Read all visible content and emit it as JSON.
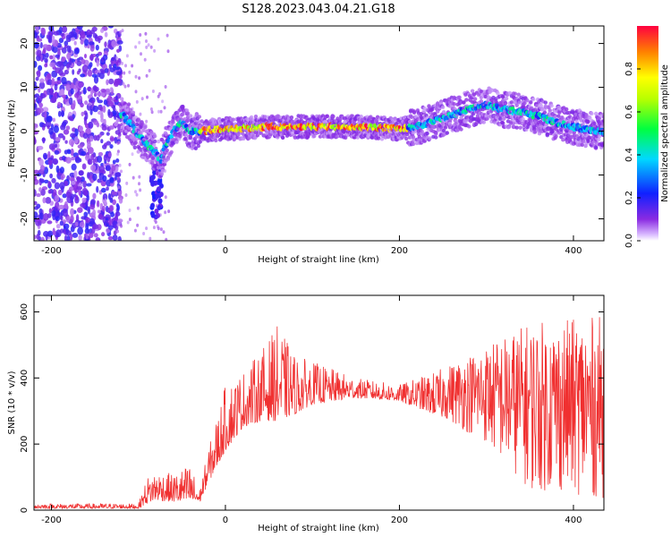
{
  "title": "S128.2023.043.04.21.G18",
  "chart_data": [
    {
      "type": "heatmap",
      "xlabel": "Height of straight line (km)",
      "ylabel": "Frequency (Hz)",
      "xlim": [
        -220,
        435
      ],
      "ylim": [
        -25,
        24
      ],
      "xticks": [
        -200,
        0,
        200,
        400
      ],
      "yticks": [
        -20,
        -10,
        0,
        10,
        20
      ],
      "colorbar": {
        "label": "Normalized spectral amplitude",
        "range": [
          0,
          1
        ],
        "ticks": [
          "0.0",
          "0.2",
          "0.4",
          "0.6",
          "0.8"
        ],
        "colormap": "rainbow (white-violet-blue-cyan-green-yellow-red)"
      },
      "ridge_x": [
        -120,
        -110,
        -100,
        -90,
        -80,
        -75,
        -70,
        -60,
        -50,
        -40,
        -30,
        0,
        50,
        100,
        150,
        200,
        220,
        250,
        280,
        300,
        320,
        350,
        380,
        400,
        430
      ],
      "ridge_y": [
        4,
        2,
        -1,
        -3,
        -5,
        -7,
        -4,
        0,
        2,
        0,
        0,
        0.5,
        1,
        1,
        1,
        0.5,
        1,
        3,
        5,
        6,
        5,
        4,
        2,
        1,
        0
      ]
    },
    {
      "type": "line",
      "xlabel": "Height of straight line (km)",
      "ylabel": "SNR (10 * v/v)",
      "xlim": [
        -220,
        435
      ],
      "ylim": [
        0,
        650
      ],
      "xticks": [
        -200,
        0,
        200,
        400
      ],
      "yticks": [
        0,
        200,
        400,
        600
      ],
      "color": "#f03030",
      "envelope_x": [
        -220,
        -100,
        -90,
        -80,
        -60,
        -40,
        -30,
        -20,
        0,
        20,
        40,
        60,
        80,
        100,
        150,
        200,
        250,
        300,
        350,
        400,
        435
      ],
      "envelope_min": [
        5,
        5,
        20,
        30,
        25,
        20,
        20,
        80,
        180,
        250,
        270,
        270,
        290,
        320,
        340,
        330,
        280,
        200,
        60,
        50,
        30
      ],
      "envelope_max": [
        20,
        20,
        100,
        120,
        110,
        140,
        60,
        180,
        380,
        420,
        480,
        560,
        470,
        450,
        400,
        380,
        430,
        500,
        570,
        580,
        590
      ]
    }
  ]
}
